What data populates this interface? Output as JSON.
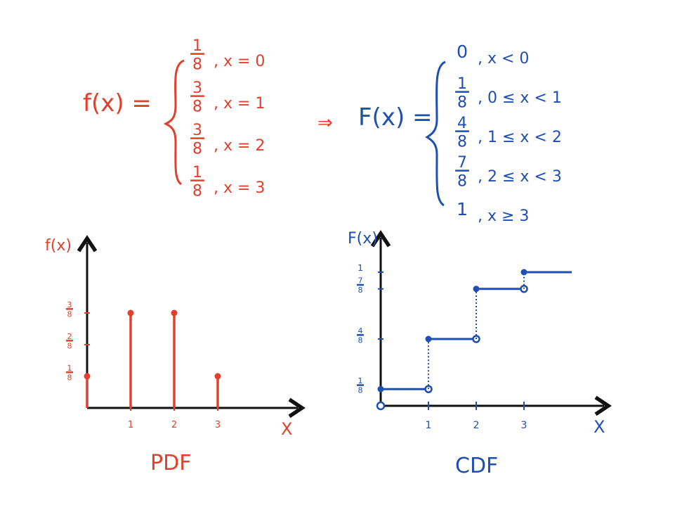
{
  "colors": {
    "pdf": "#e0402d",
    "cdf": "#1f4fb0",
    "axis": "#111111"
  },
  "pdf_formula": {
    "lhs": "f(x) =",
    "cases": [
      {
        "num": "1",
        "den": "8",
        "cond": ", x = 0"
      },
      {
        "num": "3",
        "den": "8",
        "cond": ", x = 1"
      },
      {
        "num": "3",
        "den": "8",
        "cond": ", x = 2"
      },
      {
        "num": "1",
        "den": "8",
        "cond": ", x = 3"
      }
    ]
  },
  "arrow": "⇒",
  "cdf_formula": {
    "lhs": "F(x) =",
    "cases": [
      {
        "num": "0",
        "den": "",
        "cond": ", x < 0"
      },
      {
        "num": "1",
        "den": "8",
        "cond": ", 0 ≤ x < 1"
      },
      {
        "num": "4",
        "den": "8",
        "cond": ", 1 ≤ x < 2"
      },
      {
        "num": "7",
        "den": "8",
        "cond": ", 2 ≤ x < 3"
      },
      {
        "num": "1",
        "den": "",
        "cond": ", x ≥ 3"
      }
    ]
  },
  "chart_data": [
    {
      "type": "bar",
      "caption": "PDF",
      "ylabel": "f(x)",
      "xlabel": "X",
      "x": [
        0,
        1,
        2,
        3
      ],
      "values": [
        0.125,
        0.375,
        0.375,
        0.125
      ],
      "xticks": [
        "1",
        "2",
        "3"
      ],
      "yticks": [
        {
          "num": "1",
          "den": "8"
        },
        {
          "num": "2",
          "den": "8"
        },
        {
          "num": "3",
          "den": "8"
        }
      ]
    },
    {
      "type": "line",
      "caption": "CDF",
      "ylabel": "F(x)",
      "xlabel": "X",
      "steps": [
        {
          "from": 0,
          "to": 1,
          "value": 0.125
        },
        {
          "from": 1,
          "to": 2,
          "value": 0.5
        },
        {
          "from": 2,
          "to": 3,
          "value": 0.875
        },
        {
          "from": 3,
          "to": 4,
          "value": 1
        }
      ],
      "xticks": [
        "1",
        "2",
        "3"
      ],
      "yticks": [
        {
          "num": "1",
          "den": "8"
        },
        {
          "num": "4",
          "den": "8"
        },
        {
          "num": "7",
          "den": "8"
        },
        {
          "num": "1",
          "den": ""
        }
      ]
    }
  ]
}
